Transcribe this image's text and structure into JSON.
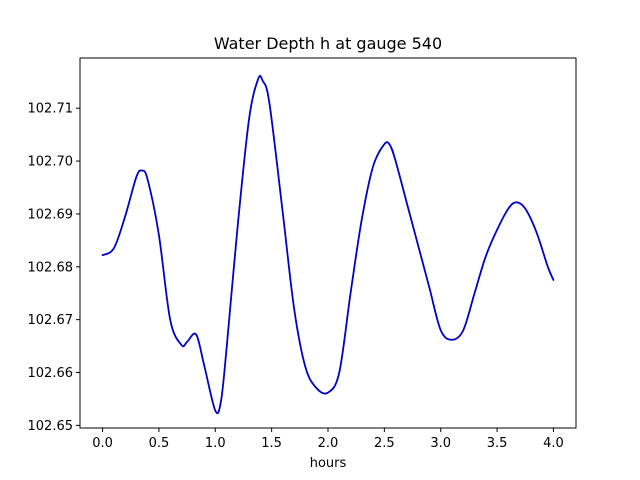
{
  "chart_data": {
    "type": "line",
    "title": "Water Depth h at gauge 540",
    "xlabel": "hours",
    "ylabel": "",
    "xlim": [
      -0.2,
      4.2
    ],
    "ylim": [
      102.6495,
      102.7195
    ],
    "xticks": [
      0.0,
      0.5,
      1.0,
      1.5,
      2.0,
      2.5,
      3.0,
      3.5,
      4.0
    ],
    "xtick_labels": [
      "0.0",
      "0.5",
      "1.0",
      "1.5",
      "2.0",
      "2.5",
      "3.0",
      "3.5",
      "4.0"
    ],
    "yticks": [
      102.65,
      102.66,
      102.67,
      102.68,
      102.69,
      102.7,
      102.71
    ],
    "ytick_labels": [
      "102.65",
      "102.66",
      "102.67",
      "102.68",
      "102.69",
      "102.70",
      "102.71"
    ],
    "grid": false,
    "line_color": "#0000cc",
    "series": [
      {
        "x": [
          0.0,
          0.1,
          0.2,
          0.3,
          0.35,
          0.4,
          0.5,
          0.6,
          0.7,
          0.75,
          0.83,
          0.9,
          1.0,
          1.05,
          1.1,
          1.2,
          1.3,
          1.38,
          1.42,
          1.48,
          1.6,
          1.7,
          1.8,
          1.9,
          2.0,
          2.1,
          2.2,
          2.3,
          2.4,
          2.5,
          2.55,
          2.6,
          2.7,
          2.8,
          2.9,
          3.0,
          3.1,
          3.2,
          3.3,
          3.4,
          3.5,
          3.6,
          3.67,
          3.75,
          3.85,
          3.95,
          4.0
        ],
        "y": [
          102.6822,
          102.6835,
          102.6895,
          102.697,
          102.6982,
          102.6965,
          102.686,
          102.67,
          102.6652,
          102.6658,
          102.6672,
          102.6615,
          102.6528,
          102.6545,
          102.6645,
          102.688,
          102.708,
          102.7155,
          102.7152,
          102.711,
          102.69,
          102.672,
          102.661,
          102.657,
          102.6562,
          102.66,
          102.675,
          102.689,
          102.699,
          102.7032,
          102.703,
          102.7,
          102.692,
          102.684,
          102.676,
          102.668,
          102.6662,
          102.668,
          102.675,
          102.682,
          102.687,
          102.691,
          102.6922,
          102.691,
          102.6865,
          102.68,
          102.6775
        ]
      }
    ]
  }
}
